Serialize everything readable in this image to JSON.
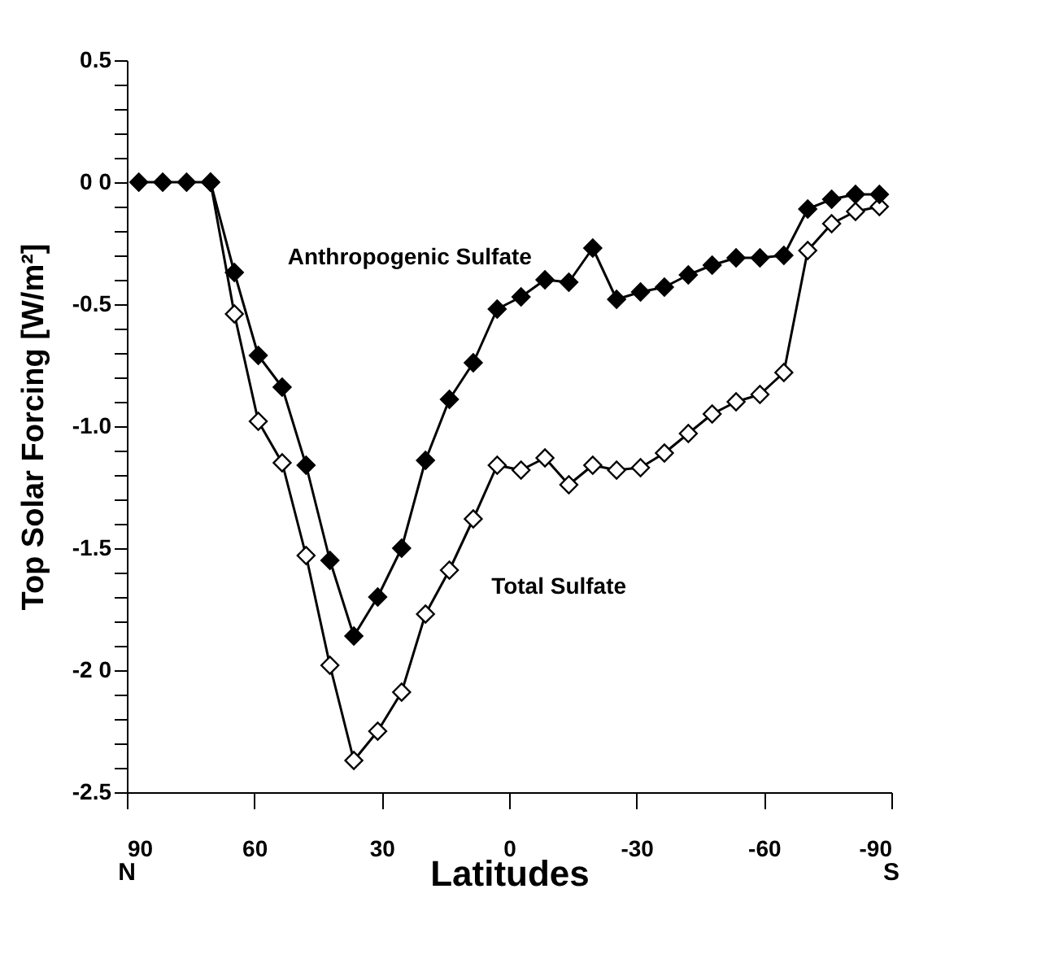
{
  "chart_data": {
    "type": "line",
    "xlabel": "Latitudes",
    "ylabel": "Top Solar Forcing [W/m²]",
    "x": [
      87.19,
      81.56,
      75.94,
      70.31,
      64.69,
      59.06,
      53.44,
      47.81,
      42.19,
      36.56,
      30.94,
      25.31,
      19.69,
      14.06,
      8.44,
      2.81,
      -2.81,
      -8.44,
      -14.06,
      -19.69,
      -25.31,
      -30.94,
      -36.56,
      -42.19,
      -47.81,
      -53.44,
      -59.06,
      -64.69,
      -70.31,
      -75.94,
      -81.56,
      -87.19
    ],
    "series": [
      {
        "name": "Anthropogenic Sulfate",
        "color": "#000000",
        "values": [
          0,
          0,
          0,
          0,
          -0.37,
          -0.71,
          -0.84,
          -1.16,
          -1.55,
          -1.86,
          -1.7,
          -1.5,
          -1.14,
          -0.89,
          -0.74,
          -0.52,
          -0.47,
          -0.4,
          -0.41,
          -0.27,
          -0.48,
          -0.45,
          -0.43,
          -0.38,
          -0.34,
          -0.31,
          -0.31,
          -0.3,
          -0.11,
          -0.07,
          -0.05,
          -0.05
        ]
      },
      {
        "name": "Total Sulfate",
        "color": "#000000",
        "values": [
          null,
          null,
          null,
          0,
          -0.54,
          -0.98,
          -1.15,
          -1.53,
          -1.98,
          -2.37,
          -2.25,
          -2.09,
          -1.77,
          -1.59,
          -1.38,
          -1.16,
          -1.18,
          -1.13,
          -1.24,
          -1.16,
          -1.18,
          -1.17,
          -1.11,
          -1.03,
          -0.95,
          -0.9,
          -0.87,
          -0.78,
          -0.28,
          -0.17,
          -0.12,
          -0.1
        ]
      }
    ],
    "xlim": [
      90,
      -90
    ],
    "xticks": [
      90,
      60,
      30,
      0,
      -30,
      -60,
      -90
    ],
    "ylim": [
      -2.5,
      0.5
    ],
    "yticks": [
      0.5,
      {
        "value": 0.4,
        "label": null
      },
      {
        "value": 0.3,
        "label": null
      },
      {
        "value": 0.2,
        "label": null
      },
      {
        "value": 0.1,
        "label": null
      },
      {
        "value": 0,
        "label": "0 0"
      },
      {
        "value": -0.1,
        "label": null
      },
      {
        "value": -0.2,
        "label": null
      },
      {
        "value": -0.3,
        "label": null
      },
      {
        "value": -0.4,
        "label": null
      },
      -0.5,
      {
        "value": -0.6,
        "label": null
      },
      {
        "value": -0.7,
        "label": null
      },
      {
        "value": -0.8,
        "label": null
      },
      {
        "value": -0.9,
        "label": null
      },
      {
        "value": -1.0,
        "label": "-1.0"
      },
      {
        "value": -1.1,
        "label": null
      },
      {
        "value": -1.2,
        "label": null
      },
      {
        "value": -1.3,
        "label": null
      },
      {
        "value": -1.4,
        "label": null
      },
      -1.5,
      {
        "value": -1.6,
        "label": null
      },
      {
        "value": -1.7,
        "label": null
      },
      {
        "value": -1.8,
        "label": null
      },
      {
        "value": -1.9,
        "label": null
      },
      {
        "value": -2.0,
        "label": "-2 0"
      },
      {
        "value": -2.1,
        "label": null
      },
      {
        "value": -2.2,
        "label": null
      },
      {
        "value": -2.3,
        "label": null
      },
      {
        "value": -2.4,
        "label": null
      },
      -2.5
    ],
    "annotations": [
      "N",
      "S"
    ],
    "marker": "diamond",
    "line_style": "solid",
    "grid": false,
    "legend": false
  }
}
